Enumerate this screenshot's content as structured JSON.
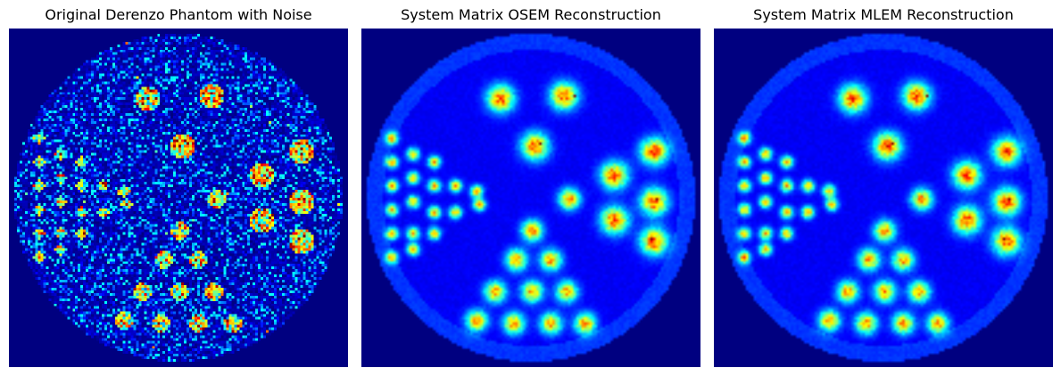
{
  "colors": {
    "background": "#00007f",
    "colormap": "jet"
  },
  "figure": {
    "panels": [
      {
        "title": "Original Derenzo Phantom with Noise"
      },
      {
        "title": "System Matrix OSEM Reconstruction"
      },
      {
        "title": "System Matrix MLEM Reconstruction"
      }
    ]
  }
}
